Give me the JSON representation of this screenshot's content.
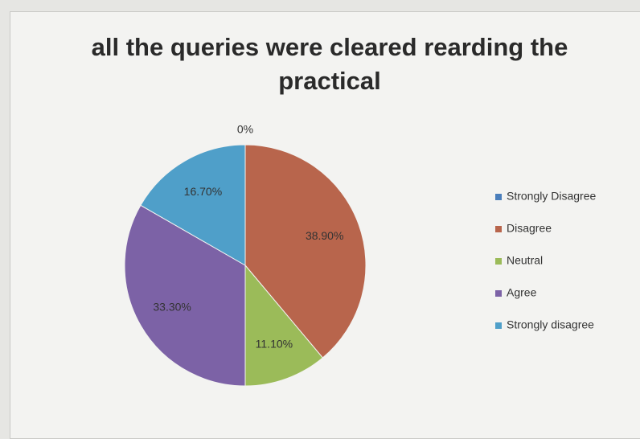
{
  "chart_data": {
    "type": "pie",
    "title": "all the queries were cleared rearding the practical",
    "categories": [
      "Strongly Disagree",
      "Disagree",
      "Neutral",
      "Agree",
      "Strongly disagree"
    ],
    "values": [
      0,
      38.9,
      11.1,
      33.3,
      16.7
    ],
    "value_labels": [
      "0%",
      "38.90%",
      "11.10%",
      "33.30%",
      "16.70%"
    ],
    "colors": [
      "#4a7ebb",
      "#b8654c",
      "#9bbb59",
      "#7c62a6",
      "#4f9fc9"
    ],
    "legend": "right"
  }
}
